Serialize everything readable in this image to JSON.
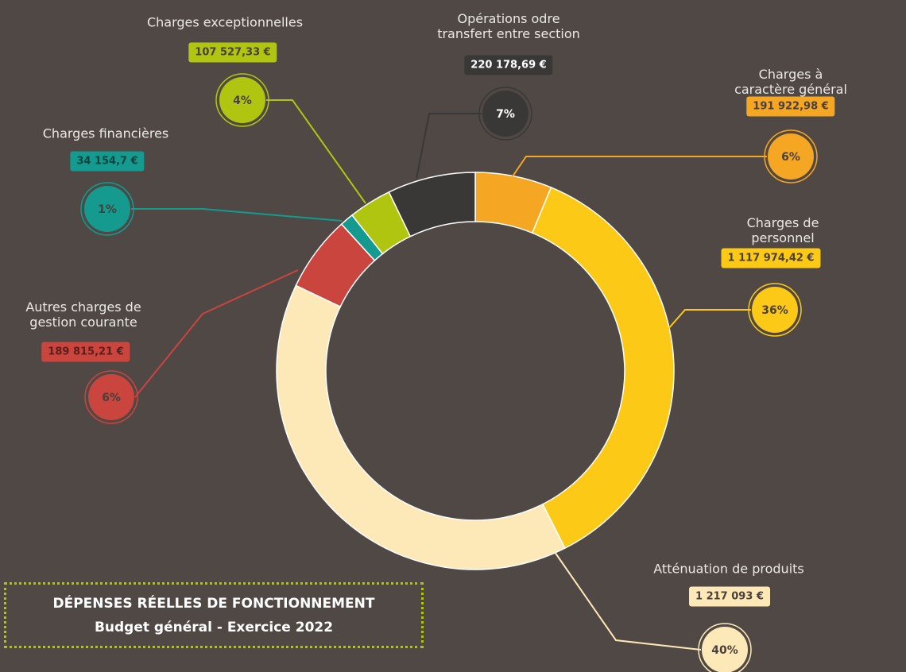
{
  "chart_data": {
    "type": "donut",
    "title": "DÉPENSES RÉELLES DE FONCTIONNEMENT",
    "subtitle": "Budget général - Exercice 2022",
    "categories": [
      "Charges à caractère général",
      "Charges de personnel",
      "Atténuation de produits",
      "Autres charges de\ngestion courante",
      "Charges financières",
      "Charges exceptionnelles",
      "Opérations odre\ntransfert entre section"
    ],
    "values": [
      191922.98,
      1117974.42,
      1217093,
      189815.21,
      34154.7,
      107527.33,
      220178.69
    ],
    "value_labels": [
      "191 922,98 €",
      "1 117 974,42 €",
      "1 217 093 €",
      "189 815,21 €",
      "34 154,7 €",
      "107 527,33 €",
      "220 178,69 €"
    ],
    "percents": [
      6,
      36,
      40,
      6,
      1,
      4,
      7
    ],
    "percent_labels": [
      "6%",
      "36%",
      "40%",
      "6%",
      "1%",
      "4%",
      "7%"
    ],
    "colors": [
      "#f5a623",
      "#fcc917",
      "#fde9b8",
      "#c9453e",
      "#149a8e",
      "#afc50f",
      "#3a3836"
    ]
  }
}
